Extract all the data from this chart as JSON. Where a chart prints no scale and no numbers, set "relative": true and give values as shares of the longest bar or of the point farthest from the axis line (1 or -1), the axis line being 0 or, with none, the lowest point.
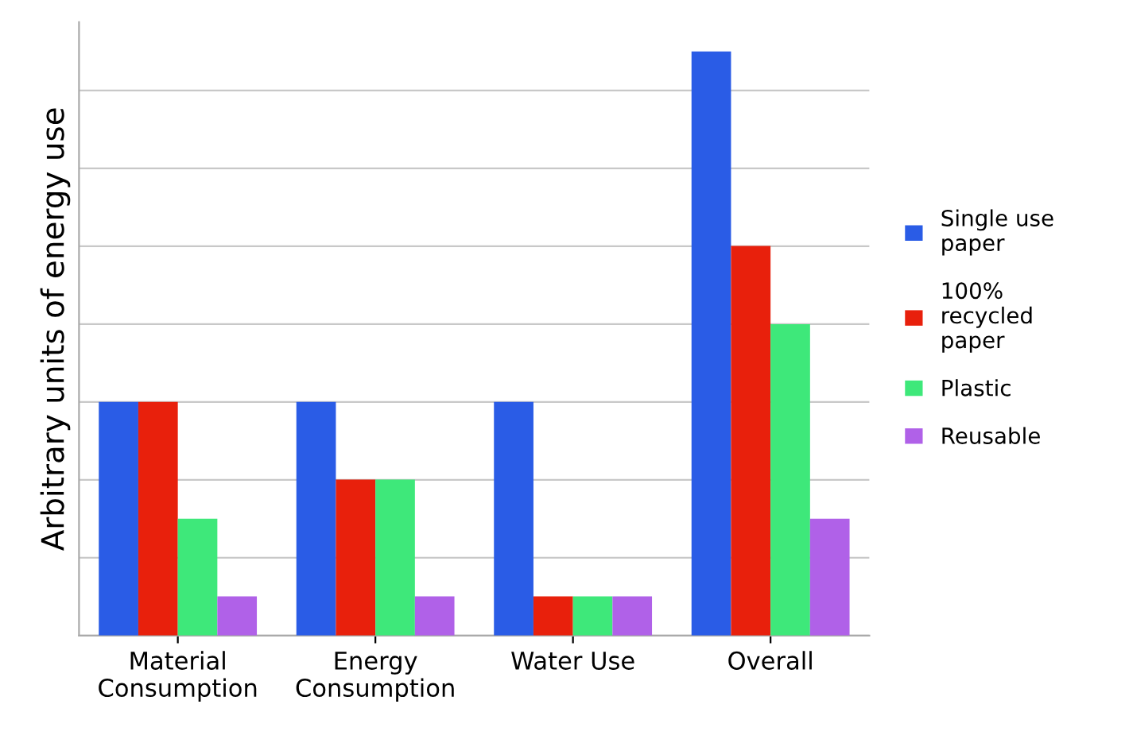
{
  "chart_data": {
    "type": "bar",
    "relative": true,
    "ylabel": "Arbitrary units of energy use",
    "categories": [
      "Material\nConsumption",
      "Energy\nConsumption",
      "Water Use",
      "Overall"
    ],
    "series": [
      {
        "name": "Single use\npaper",
        "color": "#2a5ce6",
        "values": [
          0.4,
          0.4,
          0.4,
          1
        ]
      },
      {
        "name": "100%\nrecycled\npaper",
        "color": "#e8200c",
        "values": [
          0.4,
          0.267,
          0.067,
          0.667
        ]
      },
      {
        "name": "Plastic",
        "color": "#3ee87a",
        "values": [
          0.2,
          0.267,
          0.067,
          0.533
        ]
      },
      {
        "name": "Reusable",
        "color": "#b061e8",
        "values": [
          0.067,
          0.067,
          0.067,
          0.2
        ]
      }
    ],
    "grid": "y",
    "legend": "right"
  }
}
